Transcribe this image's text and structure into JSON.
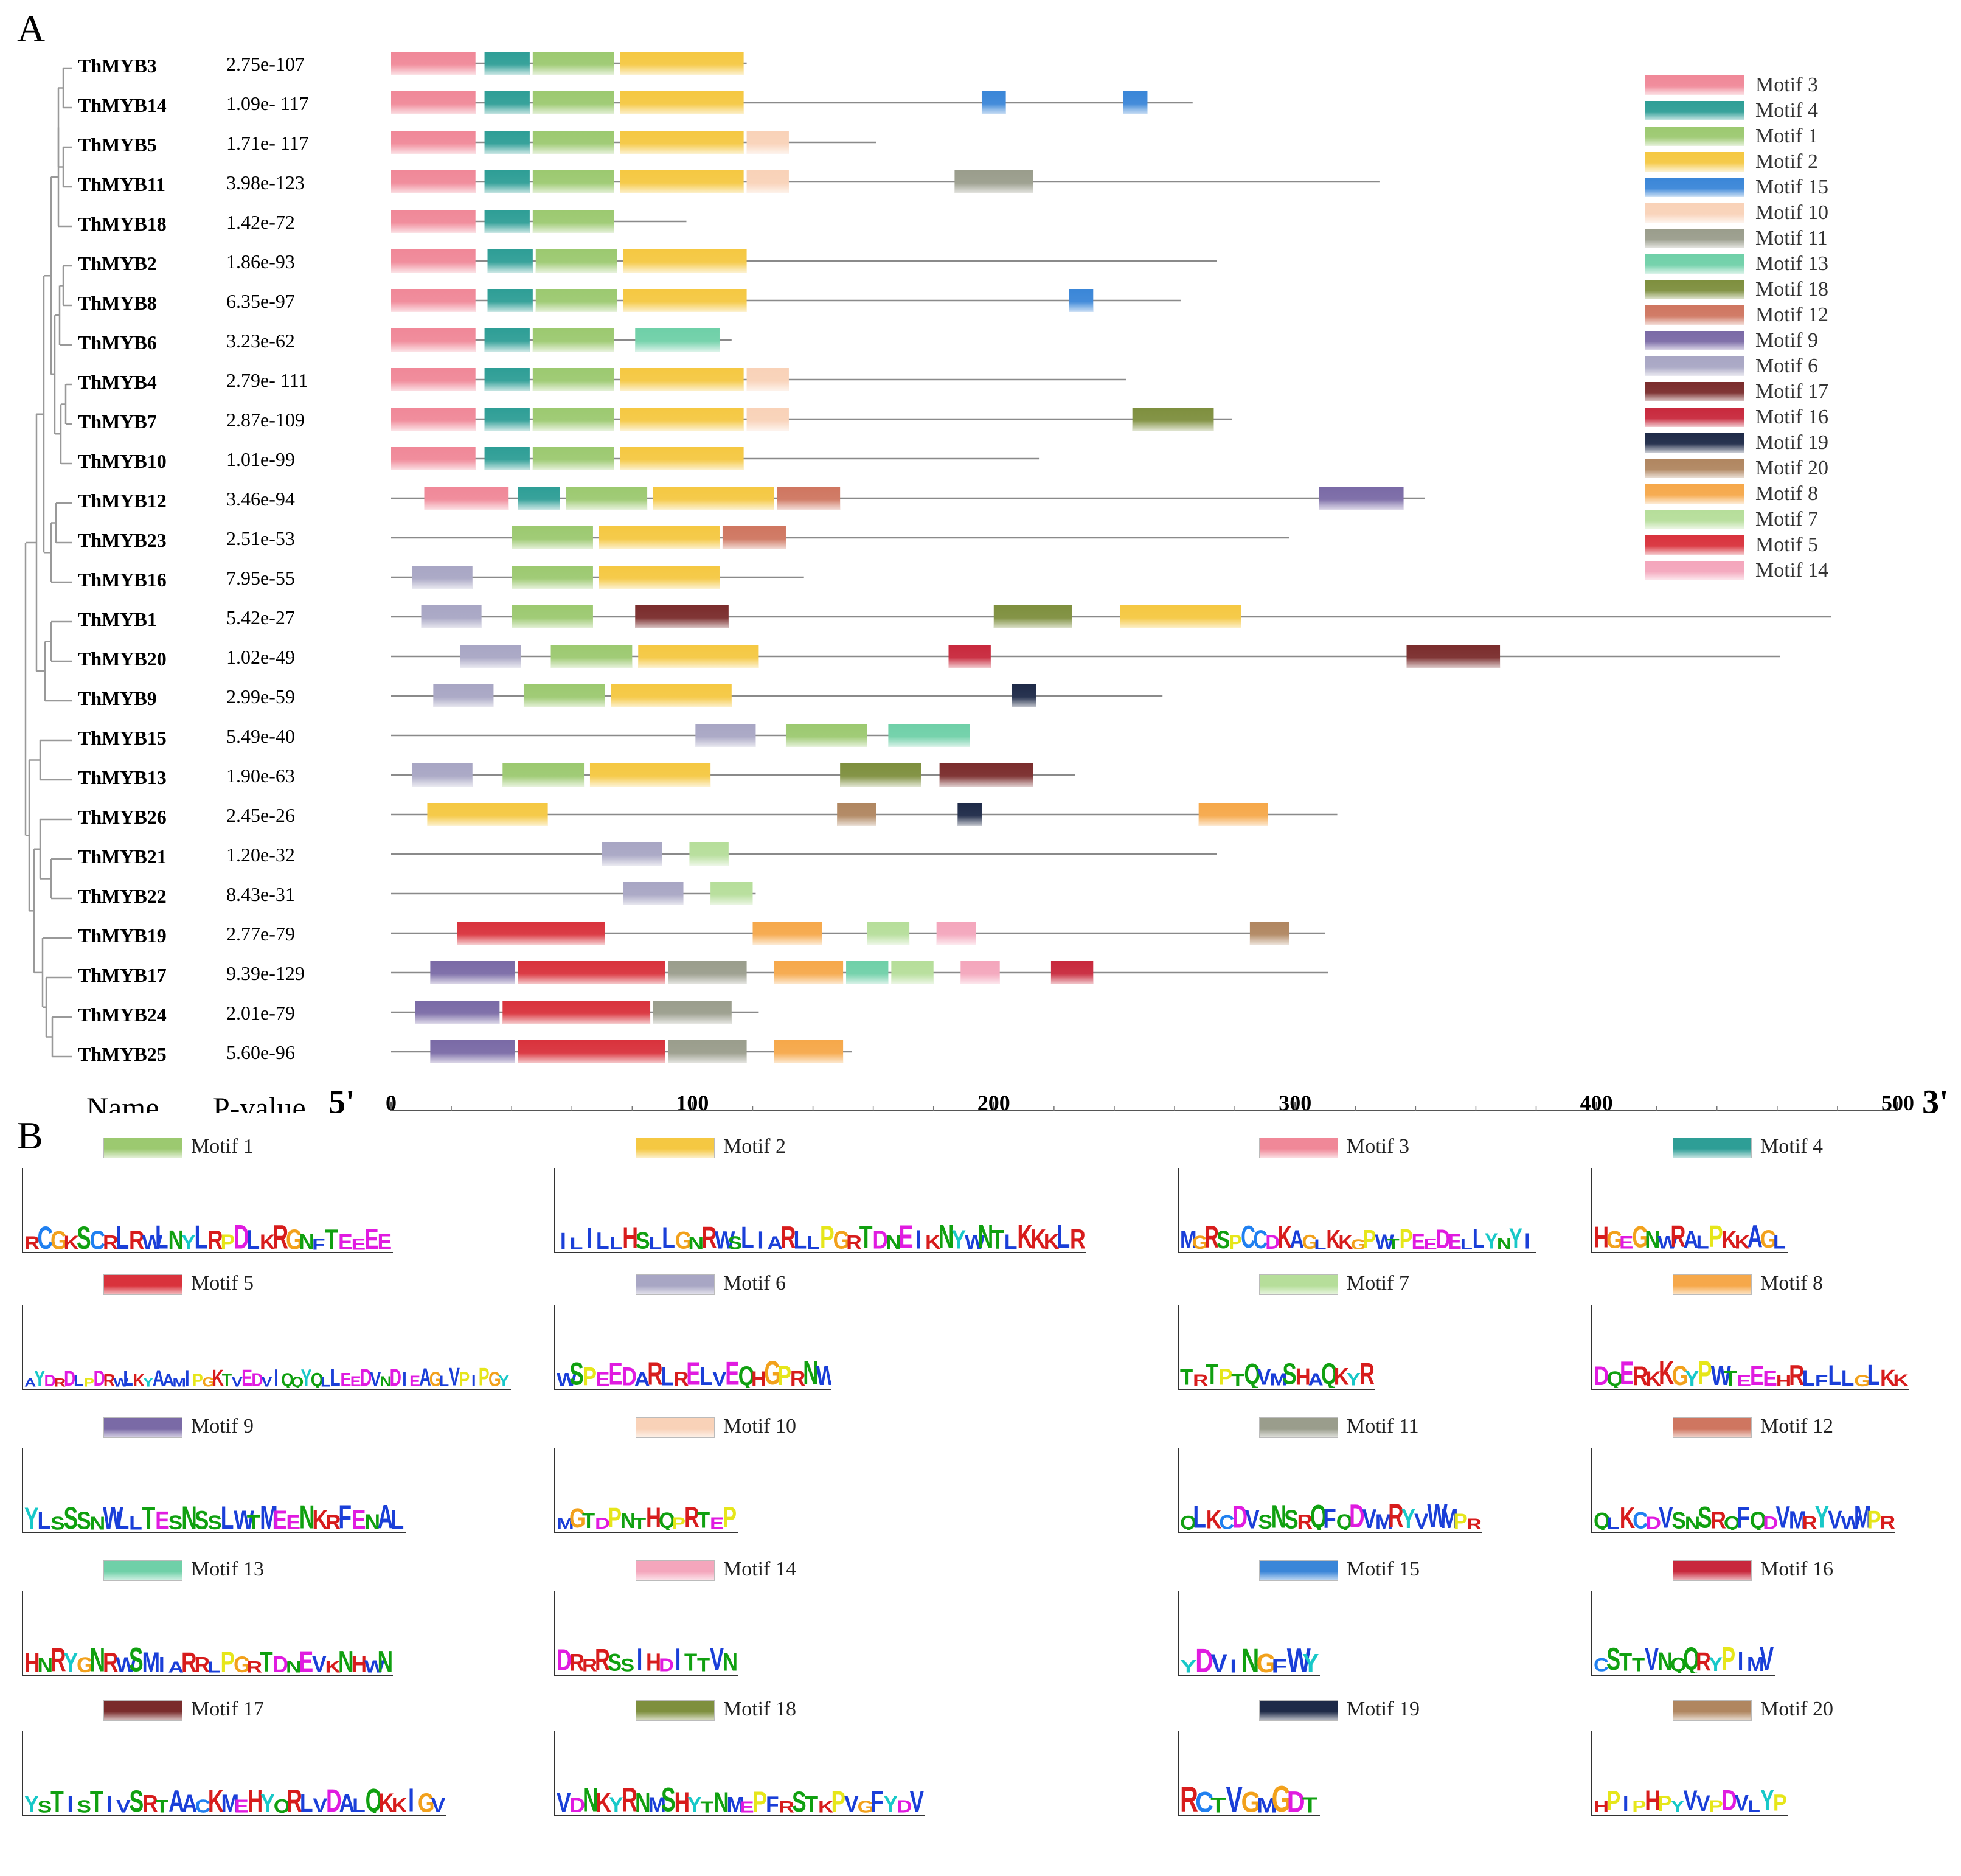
{
  "panel_a_label": "A",
  "panel_b_label": "B",
  "column_name": "Name",
  "column_pvalue": "P-value",
  "end5": "5'",
  "end3": "3'",
  "axis": {
    "min": 0,
    "max": 500,
    "ticks": [
      0,
      100,
      200,
      300,
      400,
      500
    ]
  },
  "motif_colors": {
    "1": "#9cc970",
    "2": "#f5c842",
    "3": "#f08898",
    "4": "#2e9e96",
    "5": "#d9323c",
    "6": "#a8a6c4",
    "7": "#b6de9a",
    "8": "#f6a84a",
    "9": "#7a6aa6",
    "10": "#f9d2b8",
    "11": "#9a9d8c",
    "12": "#cf7660",
    "13": "#6fd0a8",
    "14": "#f4a6bc",
    "15": "#3a86d8",
    "16": "#c8283c",
    "17": "#7a2c2c",
    "18": "#7e8f3e",
    "19": "#1e2a48",
    "20": "#b08660"
  },
  "legend": [
    "Motif 3",
    "Motif 4",
    "Motif 1",
    "Motif 2",
    "Motif 15",
    "Motif 10",
    "Motif 11",
    "Motif 13",
    "Motif 18",
    "Motif 12",
    "Motif 9",
    "Motif 6",
    "Motif 17",
    "Motif 16",
    "Motif 19",
    "Motif 20",
    "Motif 8",
    "Motif 7",
    "Motif 5",
    "Motif 14"
  ],
  "legend_ids": [
    3,
    4,
    1,
    2,
    15,
    10,
    11,
    13,
    18,
    12,
    9,
    6,
    17,
    16,
    19,
    20,
    8,
    7,
    5,
    14
  ],
  "genes": [
    {
      "name": "ThMYB3",
      "p": "2.75e-107",
      "len": 118,
      "motifs": [
        [
          3,
          0,
          28
        ],
        [
          4,
          31,
          46
        ],
        [
          1,
          47,
          74
        ],
        [
          2,
          76,
          117
        ]
      ]
    },
    {
      "name": "ThMYB14",
      "p": "1.09e- 117",
      "len": 266,
      "motifs": [
        [
          3,
          0,
          28
        ],
        [
          4,
          31,
          46
        ],
        [
          1,
          47,
          74
        ],
        [
          2,
          76,
          117
        ],
        [
          15,
          196,
          204
        ],
        [
          15,
          243,
          251
        ]
      ]
    },
    {
      "name": "ThMYB5",
      "p": "1.71e- 117",
      "len": 161,
      "motifs": [
        [
          3,
          0,
          28
        ],
        [
          4,
          31,
          46
        ],
        [
          1,
          47,
          74
        ],
        [
          2,
          76,
          117
        ],
        [
          10,
          118,
          132
        ]
      ]
    },
    {
      "name": "ThMYB11",
      "p": "3.98e-123",
      "len": 328,
      "motifs": [
        [
          3,
          0,
          28
        ],
        [
          4,
          31,
          46
        ],
        [
          1,
          47,
          74
        ],
        [
          2,
          76,
          117
        ],
        [
          10,
          118,
          132
        ],
        [
          11,
          187,
          213
        ]
      ]
    },
    {
      "name": "ThMYB18",
      "p": "1.42e-72",
      "len": 98,
      "motifs": [
        [
          3,
          0,
          28
        ],
        [
          4,
          31,
          46
        ],
        [
          1,
          47,
          74
        ]
      ]
    },
    {
      "name": "ThMYB2",
      "p": "1.86e-93",
      "len": 274,
      "motifs": [
        [
          3,
          0,
          28
        ],
        [
          4,
          32,
          47
        ],
        [
          1,
          48,
          75
        ],
        [
          2,
          77,
          118
        ]
      ]
    },
    {
      "name": "ThMYB8",
      "p": "6.35e-97",
      "len": 262,
      "motifs": [
        [
          3,
          0,
          28
        ],
        [
          4,
          32,
          47
        ],
        [
          1,
          48,
          75
        ],
        [
          2,
          77,
          118
        ],
        [
          15,
          225,
          233
        ]
      ]
    },
    {
      "name": "ThMYB6",
      "p": "3.23e-62",
      "len": 113,
      "motifs": [
        [
          3,
          0,
          28
        ],
        [
          4,
          31,
          46
        ],
        [
          1,
          47,
          74
        ],
        [
          13,
          81,
          109
        ]
      ]
    },
    {
      "name": "ThMYB4",
      "p": "2.79e- 111",
      "len": 244,
      "motifs": [
        [
          3,
          0,
          28
        ],
        [
          4,
          31,
          46
        ],
        [
          1,
          47,
          74
        ],
        [
          2,
          76,
          117
        ],
        [
          10,
          118,
          132
        ]
      ]
    },
    {
      "name": "ThMYB7",
      "p": "2.87e-109",
      "len": 279,
      "motifs": [
        [
          3,
          0,
          28
        ],
        [
          4,
          31,
          46
        ],
        [
          1,
          47,
          74
        ],
        [
          2,
          76,
          117
        ],
        [
          10,
          118,
          132
        ],
        [
          18,
          246,
          273
        ]
      ]
    },
    {
      "name": "ThMYB10",
      "p": "1.01e-99",
      "len": 215,
      "motifs": [
        [
          3,
          0,
          28
        ],
        [
          4,
          31,
          46
        ],
        [
          1,
          47,
          74
        ],
        [
          2,
          76,
          117
        ]
      ]
    },
    {
      "name": "ThMYB12",
      "p": "3.46e-94",
      "len": 343,
      "motifs": [
        [
          3,
          11,
          39
        ],
        [
          4,
          42,
          56
        ],
        [
          1,
          58,
          85
        ],
        [
          2,
          87,
          127
        ],
        [
          12,
          128,
          149
        ],
        [
          9,
          308,
          336
        ]
      ]
    },
    {
      "name": "ThMYB23",
      "p": "2.51e-53",
      "len": 298,
      "motifs": [
        [
          1,
          40,
          67
        ],
        [
          2,
          69,
          109
        ],
        [
          12,
          110,
          131
        ]
      ]
    },
    {
      "name": "ThMYB16",
      "p": "7.95e-55",
      "len": 137,
      "motifs": [
        [
          6,
          7,
          27
        ],
        [
          1,
          40,
          67
        ],
        [
          2,
          69,
          109
        ]
      ]
    },
    {
      "name": "ThMYB1",
      "p": "5.42e-27",
      "len": 478,
      "motifs": [
        [
          6,
          10,
          30
        ],
        [
          1,
          40,
          67
        ],
        [
          17,
          81,
          112
        ],
        [
          18,
          200,
          226
        ],
        [
          2,
          242,
          282
        ]
      ]
    },
    {
      "name": "ThMYB20",
      "p": "1.02e-49",
      "len": 461,
      "motifs": [
        [
          6,
          23,
          43
        ],
        [
          1,
          53,
          80
        ],
        [
          2,
          82,
          122
        ],
        [
          16,
          185,
          199
        ],
        [
          17,
          337,
          368
        ]
      ]
    },
    {
      "name": "ThMYB9",
      "p": "2.99e-59",
      "len": 256,
      "motifs": [
        [
          6,
          14,
          34
        ],
        [
          1,
          44,
          71
        ],
        [
          2,
          73,
          113
        ],
        [
          19,
          206,
          214
        ]
      ]
    },
    {
      "name": "ThMYB15",
      "p": "5.49e-40",
      "len": 192,
      "motifs": [
        [
          6,
          101,
          121
        ],
        [
          1,
          131,
          158
        ],
        [
          13,
          165,
          192
        ]
      ]
    },
    {
      "name": "ThMYB13",
      "p": "1.90e-63",
      "len": 227,
      "motifs": [
        [
          6,
          7,
          27
        ],
        [
          1,
          37,
          64
        ],
        [
          2,
          66,
          106
        ],
        [
          18,
          149,
          176
        ],
        [
          17,
          182,
          213
        ]
      ]
    },
    {
      "name": "ThMYB26",
      "p": "2.45e-26",
      "len": 314,
      "motifs": [
        [
          2,
          12,
          52
        ],
        [
          20,
          148,
          161
        ],
        [
          19,
          188,
          196
        ],
        [
          8,
          268,
          291
        ]
      ]
    },
    {
      "name": "ThMYB21",
      "p": "1.20e-32",
      "len": 274,
      "motifs": [
        [
          6,
          70,
          90
        ],
        [
          7,
          99,
          112
        ]
      ]
    },
    {
      "name": "ThMYB22",
      "p": "8.43e-31",
      "len": 121,
      "motifs": [
        [
          6,
          77,
          97
        ],
        [
          7,
          106,
          120
        ]
      ]
    },
    {
      "name": "ThMYB19",
      "p": "2.77e-79",
      "len": 310,
      "motifs": [
        [
          5,
          22,
          71
        ],
        [
          8,
          120,
          143
        ],
        [
          7,
          158,
          172
        ],
        [
          14,
          181,
          194
        ],
        [
          20,
          285,
          298
        ]
      ]
    },
    {
      "name": "ThMYB17",
      "p": "9.39e-129",
      "len": 311,
      "motifs": [
        [
          9,
          13,
          41
        ],
        [
          5,
          42,
          91
        ],
        [
          11,
          92,
          118
        ],
        [
          8,
          127,
          150
        ],
        [
          13,
          151,
          165
        ],
        [
          7,
          166,
          180
        ],
        [
          14,
          189,
          202
        ],
        [
          16,
          219,
          233
        ]
      ]
    },
    {
      "name": "ThMYB24",
      "p": "2.01e-79",
      "len": 122,
      "motifs": [
        [
          9,
          8,
          36
        ],
        [
          5,
          37,
          86
        ],
        [
          11,
          87,
          113
        ]
      ]
    },
    {
      "name": "ThMYB25",
      "p": "5.60e-96",
      "len": 153,
      "motifs": [
        [
          9,
          13,
          41
        ],
        [
          5,
          42,
          91
        ],
        [
          11,
          92,
          118
        ],
        [
          8,
          127,
          150
        ]
      ]
    }
  ],
  "logos": [
    {
      "id": 1,
      "title": "Motif 1",
      "seq": "RCGKSCRLRWLNYLRPDLKRGNFTEEEE"
    },
    {
      "id": 2,
      "title": "Motif 2",
      "seq": "ILILLHSLLGNRWSLIARLLPGRTDNEIKNYWNTLKKKLR"
    },
    {
      "id": 3,
      "title": "Motif 3",
      "seq": "MGRSPCCDKAGLKKGPWTPEEDELLYNYI"
    },
    {
      "id": 4,
      "title": "Motif 4",
      "seq": "HGEGNWRALPKKAGL"
    },
    {
      "id": 5,
      "title": "Motif 5",
      "seq": "AYDRDLPDRWLKYAAMIPGKTVEDVIQQYQLLEEDVNDIEAGLVPIPGY"
    },
    {
      "id": 6,
      "title": "Motif 6",
      "seq": "WSPEEDARLRELVEQHGPRNW"
    },
    {
      "id": 7,
      "title": "Motif 7",
      "seq": "TRTPTQVMSHAQKYR"
    },
    {
      "id": 8,
      "title": "Motif 8",
      "seq": "DQERKKGYPWTEEEHRLFLLGLKK"
    },
    {
      "id": 9,
      "title": "Motif 9",
      "seq": "YLSSSNWLLTESNSSLWTMEENKRFENAL"
    },
    {
      "id": 10,
      "title": "Motif 10",
      "seq": "MGTDPNTHQPRTEP"
    },
    {
      "id": 11,
      "title": "Motif 11",
      "seq": "QLKCDVSNSRQFQDVMRYVWMPR"
    },
    {
      "id": 12,
      "title": "Motif 12",
      "seq": "QLKCDVSNSRQFQDVMRYVWMPR"
    },
    {
      "id": 13,
      "title": "Motif 13",
      "seq": "HNRYGNRWSMIARRLPGRTDNEVKNHWN"
    },
    {
      "id": 14,
      "title": "Motif 14",
      "seq": "DRRRSSIHDITTVN"
    },
    {
      "id": 15,
      "title": "Motif 15",
      "seq": "YDVINGFWY"
    },
    {
      "id": 16,
      "title": "Motif 16",
      "seq": "CSTTVNQQRYPIMV"
    },
    {
      "id": 17,
      "title": "Motif 17",
      "seq": "YSTISTIVSRTAACKMEHYQRLVDALQKKIGV"
    },
    {
      "id": 18,
      "title": "Motif 18",
      "seq": "VDNKYRNMSHYTNMEPFRSTKPVGFYDV"
    },
    {
      "id": 19,
      "title": "Motif 19",
      "seq": "RCTVGMGDT"
    },
    {
      "id": 20,
      "title": "Motif 20",
      "seq": "HPIPHPYVVPDVLYP"
    }
  ]
}
